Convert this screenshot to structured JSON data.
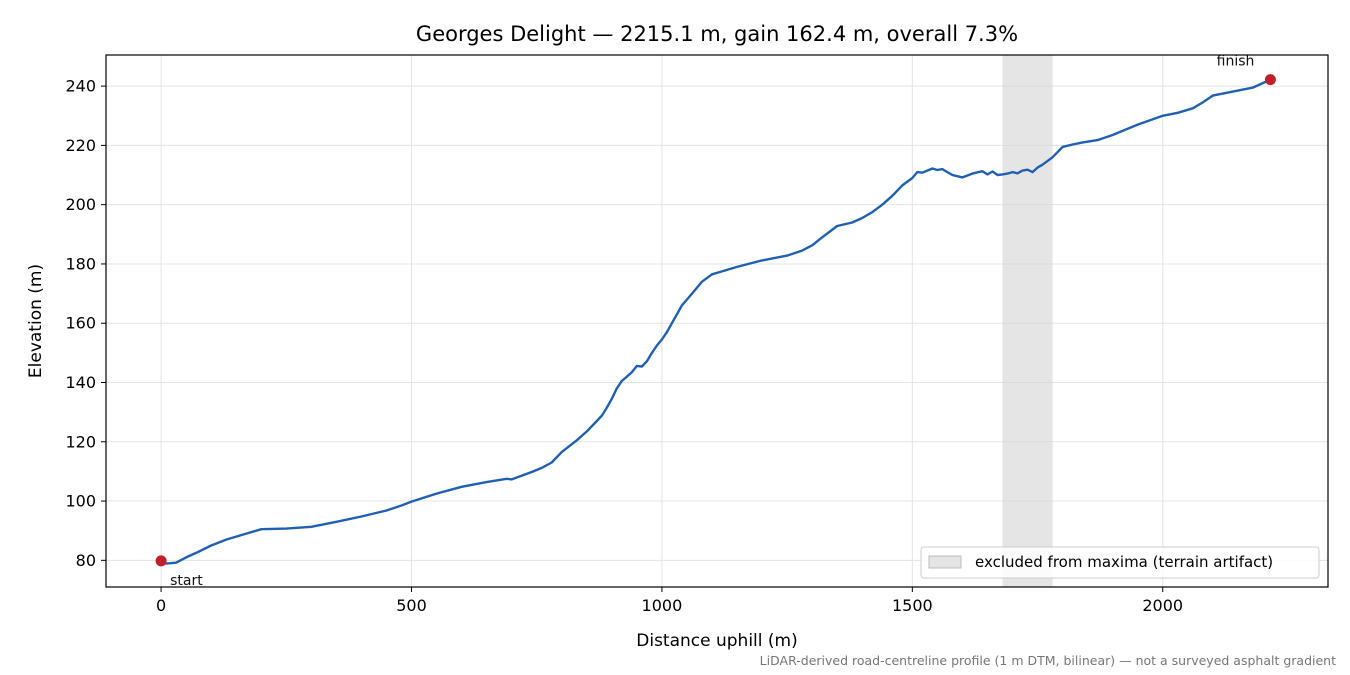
{
  "chart_data": {
    "type": "line",
    "title": "Georges Delight — 2215.1 m, gain 162.4 m, overall 7.3%",
    "xlabel": "Distance uphill (m)",
    "ylabel": "Elevation (m)",
    "xlim": [
      -110,
      2330
    ],
    "ylim": [
      71,
      250.5
    ],
    "xticks": [
      0,
      500,
      1000,
      1500,
      2000
    ],
    "yticks": [
      80,
      100,
      120,
      140,
      160,
      180,
      200,
      220,
      240
    ],
    "grid": true,
    "colors": {
      "line": "#2060b0",
      "marker": "#c0202a",
      "band": "#d3d3d3"
    },
    "series": [
      {
        "x": [
          0,
          10,
          30,
          50,
          70,
          100,
          130,
          160,
          200,
          250,
          300,
          350,
          400,
          450,
          480,
          500,
          550,
          600,
          650,
          690,
          700,
          740,
          760,
          780,
          800,
          830,
          850,
          870,
          880,
          890,
          900,
          910,
          920,
          930,
          940,
          950,
          960,
          970,
          980,
          990,
          1000,
          1010,
          1020,
          1030,
          1040,
          1060,
          1080,
          1100,
          1120,
          1150,
          1200,
          1250,
          1280,
          1300,
          1320,
          1350,
          1380,
          1400,
          1420,
          1440,
          1460,
          1480,
          1500,
          1510,
          1520,
          1530,
          1540,
          1550,
          1560,
          1570,
          1580,
          1600,
          1620,
          1640,
          1650,
          1660,
          1670,
          1680,
          1690,
          1700,
          1710,
          1720,
          1730,
          1740,
          1750,
          1760,
          1780,
          1800,
          1820,
          1840,
          1870,
          1900,
          1950,
          2000,
          2030,
          2060,
          2080,
          2100,
          2150,
          2180,
          2215
        ],
        "values": [
          79.8,
          78.9,
          79.2,
          81.0,
          82.5,
          85.0,
          87.0,
          88.5,
          90.5,
          90.7,
          91.3,
          93.0,
          94.8,
          96.8,
          98.5,
          99.8,
          102.5,
          104.8,
          106.4,
          107.5,
          107.3,
          109.8,
          111.2,
          113.0,
          116.5,
          120.5,
          123.5,
          127.0,
          128.8,
          131.5,
          134.5,
          138.0,
          140.5,
          142.0,
          143.5,
          145.6,
          145.4,
          147.2,
          150.0,
          152.5,
          154.5,
          157.0,
          160.0,
          163.0,
          166.0,
          170.0,
          174.0,
          176.5,
          177.5,
          179.0,
          181.2,
          182.8,
          184.5,
          186.3,
          189.0,
          192.8,
          194.0,
          195.5,
          197.5,
          200.0,
          203.0,
          206.5,
          209.0,
          211.0,
          210.8,
          211.5,
          212.2,
          211.7,
          212.0,
          211.0,
          210.0,
          209.2,
          210.5,
          211.3,
          210.2,
          211.2,
          210.0,
          210.2,
          210.5,
          211.0,
          210.6,
          211.5,
          211.8,
          211.0,
          212.5,
          213.5,
          216.0,
          219.5,
          220.3,
          221.0,
          221.8,
          223.5,
          227.0,
          230.0,
          231.0,
          232.5,
          234.5,
          236.8,
          238.5,
          239.5,
          242.2
        ]
      }
    ],
    "markers": [
      {
        "label": "start",
        "x": 0,
        "y": 79.8
      },
      {
        "label": "finish",
        "x": 2215,
        "y": 242.2
      }
    ],
    "excluded_band": {
      "x0": 1680,
      "x1": 1780,
      "label": "excluded from maxima (terrain artifact)"
    },
    "legend": "bottom-right",
    "footnote": "LiDAR-derived road-centreline profile (1 m DTM, bilinear) — not a surveyed asphalt gradient"
  }
}
